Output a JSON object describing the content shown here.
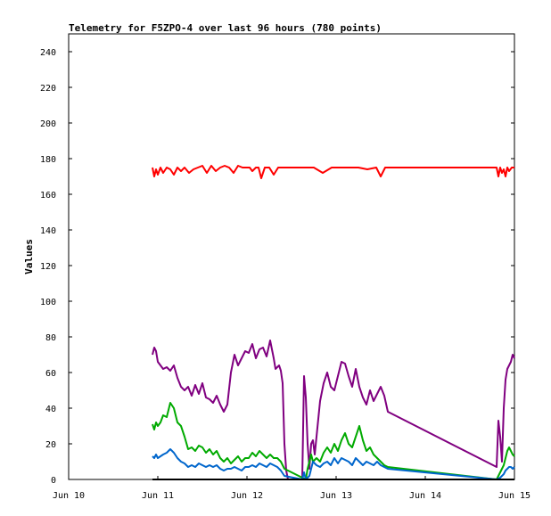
{
  "chart_data": {
    "type": "line",
    "title": "Telemetry for F5ZPO-4 over last 96 hours (780 points)",
    "xlabel": "",
    "ylabel": "Values",
    "ylim": [
      0,
      250
    ],
    "x_ticks": [
      "Jun 10",
      "Jun 11",
      "Jun 12",
      "Jun 13",
      "Jun 14",
      "Jun 15"
    ],
    "y_ticks": [
      0,
      20,
      40,
      60,
      80,
      100,
      120,
      140,
      160,
      180,
      200,
      220,
      240
    ],
    "x_range_days": [
      10,
      15
    ],
    "grid": false,
    "legend": "none",
    "series": [
      {
        "color": "#ff0000",
        "x": [
          10.94,
          10.96,
          10.98,
          11.0,
          11.03,
          11.06,
          11.1,
          11.14,
          11.18,
          11.22,
          11.26,
          11.3,
          11.35,
          11.4,
          11.45,
          11.5,
          11.55,
          11.6,
          11.65,
          11.7,
          11.75,
          11.8,
          11.85,
          11.9,
          11.95,
          12.0,
          12.03,
          12.06,
          12.1,
          12.13,
          12.16,
          12.2,
          12.25,
          12.3,
          12.35,
          12.4,
          12.5,
          12.6,
          12.75,
          12.85,
          12.95,
          13.05,
          13.15,
          13.25,
          13.35,
          13.45,
          13.5,
          13.55,
          13.6,
          13.7,
          13.8,
          13.9,
          14.0,
          14.2,
          14.4,
          14.6,
          14.8,
          14.82,
          14.84,
          14.86,
          14.88,
          14.9,
          14.92,
          14.94,
          14.97,
          15.0
        ],
        "values": [
          175,
          170,
          174,
          171,
          175,
          172,
          175,
          174,
          171,
          175,
          173,
          175,
          172,
          174,
          175,
          176,
          172,
          176,
          173,
          175,
          176,
          175,
          172,
          176,
          175,
          175,
          175,
          173,
          175,
          175,
          169,
          175,
          175,
          171,
          175,
          175,
          175,
          175,
          175,
          172,
          175,
          175,
          175,
          175,
          174,
          175,
          170,
          175,
          175,
          175,
          175,
          175,
          175,
          175,
          175,
          175,
          175,
          170,
          175,
          172,
          174,
          170,
          175,
          173,
          175,
          175
        ]
      },
      {
        "color": "#800080",
        "x": [
          10.94,
          10.96,
          10.98,
          11.0,
          11.03,
          11.06,
          11.1,
          11.14,
          11.18,
          11.22,
          11.26,
          11.3,
          11.34,
          11.38,
          11.42,
          11.46,
          11.5,
          11.54,
          11.58,
          11.62,
          11.66,
          11.7,
          11.74,
          11.78,
          11.82,
          11.86,
          11.9,
          11.94,
          11.98,
          12.02,
          12.06,
          12.1,
          12.14,
          12.18,
          12.22,
          12.26,
          12.3,
          12.32,
          12.36,
          12.38,
          12.4,
          12.42,
          12.44,
          12.46,
          12.62,
          12.64,
          12.66,
          12.68,
          12.7,
          12.72,
          12.74,
          12.76,
          12.78,
          12.82,
          12.86,
          12.9,
          12.94,
          12.98,
          13.02,
          13.06,
          13.1,
          13.14,
          13.18,
          13.22,
          13.26,
          13.3,
          13.34,
          13.38,
          13.42,
          13.46,
          13.5,
          13.54,
          13.58,
          14.8,
          14.81,
          14.82,
          14.84,
          14.86,
          14.88,
          14.9,
          14.92,
          14.94,
          14.96,
          14.98,
          15.0
        ],
        "values": [
          70,
          74,
          72,
          66,
          64,
          62,
          63,
          61,
          64,
          57,
          52,
          50,
          52,
          47,
          53,
          48,
          54,
          46,
          45,
          43,
          47,
          42,
          38,
          42,
          60,
          70,
          64,
          68,
          72,
          71,
          76,
          68,
          73,
          74,
          69,
          78,
          68,
          62,
          64,
          61,
          54,
          20,
          5,
          0,
          0,
          58,
          46,
          20,
          6,
          20,
          22,
          14,
          24,
          44,
          54,
          60,
          52,
          50,
          58,
          66,
          65,
          58,
          52,
          62,
          52,
          46,
          42,
          50,
          44,
          48,
          52,
          47,
          38,
          7,
          20,
          33,
          24,
          10,
          40,
          56,
          62,
          64,
          66,
          70,
          68
        ]
      },
      {
        "color": "#00aa00",
        "x": [
          10.94,
          10.96,
          10.98,
          11.0,
          11.03,
          11.06,
          11.1,
          11.14,
          11.18,
          11.22,
          11.26,
          11.3,
          11.34,
          11.38,
          11.42,
          11.46,
          11.5,
          11.54,
          11.58,
          11.62,
          11.66,
          11.7,
          11.74,
          11.78,
          11.82,
          11.86,
          11.9,
          11.94,
          11.98,
          12.02,
          12.06,
          12.1,
          12.14,
          12.18,
          12.22,
          12.26,
          12.3,
          12.34,
          12.38,
          12.42,
          12.66,
          12.68,
          12.7,
          12.72,
          12.74,
          12.78,
          12.82,
          12.86,
          12.9,
          12.94,
          12.98,
          13.02,
          13.06,
          13.1,
          13.14,
          13.18,
          13.22,
          13.26,
          13.3,
          13.34,
          13.38,
          13.42,
          13.46,
          13.5,
          13.54,
          13.58,
          14.8,
          14.82,
          14.84,
          14.86,
          14.88,
          14.9,
          14.92,
          14.94,
          14.96,
          14.98,
          15.0
        ],
        "values": [
          31,
          28,
          32,
          30,
          32,
          36,
          35,
          43,
          40,
          32,
          30,
          24,
          17,
          18,
          16,
          19,
          18,
          15,
          17,
          14,
          16,
          12,
          10,
          12,
          9,
          11,
          13,
          10,
          12,
          12,
          15,
          13,
          16,
          14,
          12,
          14,
          12,
          12,
          10,
          6,
          0,
          6,
          10,
          14,
          10,
          12,
          10,
          15,
          18,
          15,
          20,
          16,
          22,
          26,
          20,
          18,
          24,
          30,
          22,
          16,
          18,
          14,
          12,
          10,
          8,
          7,
          0,
          2,
          4,
          6,
          8,
          12,
          16,
          18,
          16,
          14,
          13
        ]
      },
      {
        "color": "#0066cc",
        "x": [
          10.94,
          10.96,
          10.98,
          11.0,
          11.03,
          11.06,
          11.1,
          11.14,
          11.18,
          11.22,
          11.26,
          11.3,
          11.34,
          11.38,
          11.42,
          11.46,
          11.5,
          11.54,
          11.58,
          11.62,
          11.66,
          11.7,
          11.74,
          11.78,
          11.82,
          11.86,
          11.9,
          11.94,
          11.98,
          12.02,
          12.06,
          12.1,
          12.14,
          12.18,
          12.22,
          12.26,
          12.3,
          12.34,
          12.38,
          12.42,
          12.62,
          12.64,
          12.66,
          12.7,
          12.74,
          12.78,
          12.82,
          12.86,
          12.9,
          12.94,
          12.98,
          13.02,
          13.06,
          13.1,
          13.14,
          13.18,
          13.22,
          13.26,
          13.3,
          13.34,
          13.38,
          13.42,
          13.46,
          13.5,
          13.54,
          13.58,
          14.8,
          14.84,
          14.88,
          14.9,
          14.92,
          14.94,
          14.96,
          14.98,
          15.0
        ],
        "values": [
          13,
          12,
          14,
          12,
          13,
          14,
          15,
          17,
          15,
          12,
          10,
          9,
          7,
          8,
          7,
          9,
          8,
          7,
          8,
          7,
          8,
          6,
          5,
          6,
          6,
          7,
          6,
          5,
          7,
          7,
          8,
          7,
          9,
          8,
          7,
          9,
          8,
          7,
          5,
          2,
          0,
          4,
          0,
          2,
          10,
          8,
          7,
          9,
          10,
          8,
          12,
          9,
          12,
          11,
          10,
          8,
          12,
          10,
          8,
          10,
          9,
          8,
          10,
          8,
          7,
          6,
          0,
          1,
          3,
          5,
          6,
          7,
          7,
          6,
          7
        ]
      },
      {
        "color": "#000000",
        "x": [
          10.94,
          15.0
        ],
        "values": [
          0,
          0
        ]
      }
    ]
  }
}
